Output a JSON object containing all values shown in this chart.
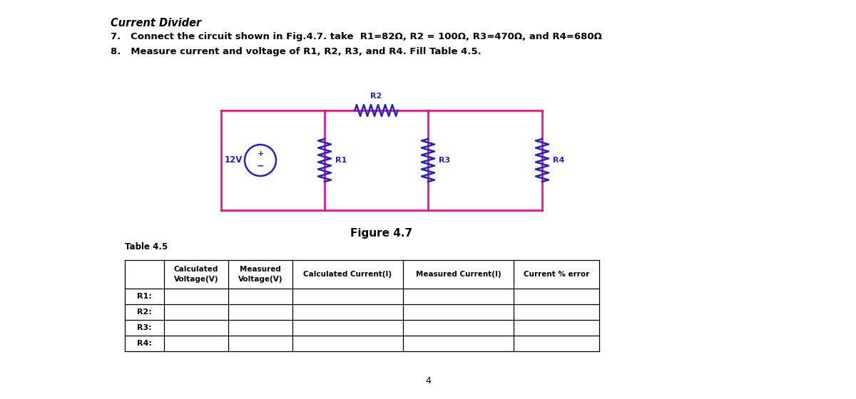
{
  "title": "Current Divider",
  "item7": "7.   Connect the circuit shown in Fig.4.7. take  R1=82Ω, R2 = 100Ω, R3=470Ω, and R4=680Ω",
  "item8": "8.   Measure current and voltage of R1, R2, R3, and R4. Fill Table 4.5.",
  "figure_label": "Figure 4.7",
  "table_label": "Table 4.5",
  "page_number": "4",
  "circuit_color": "#E8007A",
  "resistor_color": "#2222CC",
  "bg_color": "#FFFFFF",
  "table_header_line1": [
    "",
    "Calculated",
    "Measured",
    "Calculated Current(I)",
    "Measured Current(I)",
    "Current % error"
  ],
  "table_header_line2": [
    "",
    "Voltage(V)",
    "Voltage(V)",
    "",
    "",
    ""
  ],
  "table_rows": [
    "R1:",
    "R2:",
    "R3:",
    "R4:"
  ]
}
